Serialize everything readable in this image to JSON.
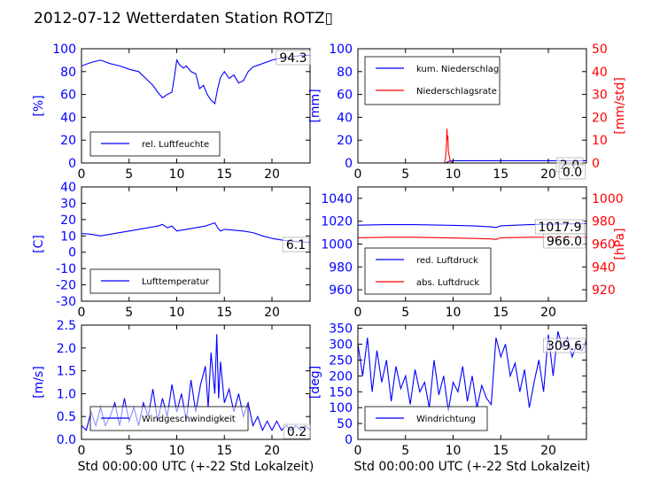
{
  "figure": {
    "title": "2012-07-12 Wetterdaten Station ROTZ▯"
  },
  "colors": {
    "blue": "#0000ff",
    "red": "#ff0000",
    "lightblue": "#8080ff",
    "black": "#000000"
  },
  "chart_data": [
    {
      "id": "humidity",
      "type": "line",
      "xlim": [
        0,
        24
      ],
      "xticks": [
        0,
        5,
        10,
        15,
        20
      ],
      "ylim": [
        0,
        100
      ],
      "yticks": [
        0,
        20,
        40,
        60,
        80,
        100
      ],
      "ylabel": "[%]",
      "current_value": "94.3",
      "legend": {
        "placement": "lower-left",
        "entries": [
          {
            "label": "rel. Luftfeuchte",
            "color": "#0000ff"
          }
        ]
      },
      "series": [
        {
          "name": "rel. Luftfeuchte",
          "color": "#0000ff",
          "x": [
            0,
            1,
            2,
            3,
            4,
            5,
            6,
            7,
            7.5,
            8,
            8.5,
            9,
            9.5,
            9.8,
            10,
            10.3,
            10.7,
            11,
            11.5,
            12,
            12.4,
            12.8,
            13.2,
            13.6,
            14,
            14.3,
            14.6,
            15,
            15.5,
            16,
            16.5,
            17,
            17.5,
            18,
            19,
            20,
            21,
            22,
            23,
            24
          ],
          "y": [
            85,
            88,
            90,
            87,
            85,
            82,
            80,
            72,
            68,
            62,
            57,
            60,
            62,
            78,
            90,
            86,
            83,
            85,
            80,
            78,
            65,
            68,
            60,
            55,
            52,
            65,
            75,
            80,
            74,
            77,
            70,
            72,
            80,
            84,
            87,
            90,
            92,
            93,
            94,
            94.3
          ]
        }
      ]
    },
    {
      "id": "precip",
      "type": "line",
      "xlim": [
        0,
        24
      ],
      "xticks": [
        0,
        5,
        10,
        15,
        20
      ],
      "ylim": [
        0,
        100
      ],
      "yticks": [
        0,
        20,
        40,
        60,
        80,
        100
      ],
      "ylabel": "[mm]",
      "y2lim": [
        0,
        50
      ],
      "y2ticks": [
        0,
        10,
        20,
        30,
        40,
        50
      ],
      "y2label": "[mm/std]",
      "current_values": [
        "2.0",
        "0.0"
      ],
      "legend": {
        "placement": "top-left",
        "entries": [
          {
            "label": "kum. Niederschlag",
            "color": "#0000ff"
          },
          {
            "label": "Niederschlagsrate",
            "color": "#ff0000"
          }
        ]
      },
      "series": [
        {
          "name": "kum. Niederschlag",
          "color": "#0000ff",
          "axis": "left",
          "x": [
            0,
            9.2,
            9.4,
            9.6,
            10,
            24
          ],
          "y": [
            0,
            0,
            0.8,
            1.6,
            2.0,
            2.0
          ]
        },
        {
          "name": "Niederschlagsrate",
          "color": "#ff0000",
          "axis": "right",
          "x": [
            0,
            9.1,
            9.2,
            9.3,
            9.35,
            9.4,
            9.45,
            9.5,
            9.6,
            9.7,
            9.8,
            10,
            24
          ],
          "y": [
            0,
            0,
            2,
            8,
            15,
            10,
            12,
            5,
            3,
            1,
            0.5,
            0,
            0
          ]
        }
      ]
    },
    {
      "id": "temperature",
      "type": "line",
      "xlim": [
        0,
        24
      ],
      "xticks": [
        0,
        5,
        10,
        15,
        20
      ],
      "ylim": [
        -30,
        40
      ],
      "yticks": [
        -30,
        -20,
        -10,
        0,
        10,
        20,
        30,
        40
      ],
      "ylabel": "[C]",
      "current_value": "6.1",
      "legend": {
        "placement": "lower-left",
        "entries": [
          {
            "label": "Lufttemperatur",
            "color": "#0000ff"
          }
        ]
      },
      "series": [
        {
          "name": "Lufttemperatur",
          "color": "#0000ff",
          "x": [
            0,
            1,
            2,
            3,
            4,
            5,
            6,
            7,
            8,
            8.5,
            9,
            9.5,
            10,
            10.5,
            11,
            12,
            13,
            13.5,
            14,
            14.3,
            14.6,
            15,
            16,
            17,
            18,
            19,
            20,
            21,
            22,
            23,
            24
          ],
          "y": [
            11.5,
            11,
            10,
            11,
            12,
            13,
            14,
            15,
            16,
            17,
            15,
            16,
            13,
            13.5,
            14,
            15,
            16,
            17,
            18,
            15,
            13,
            14,
            13.5,
            13,
            12,
            10,
            8.5,
            7.5,
            6.8,
            6.3,
            6.1
          ]
        }
      ]
    },
    {
      "id": "pressure",
      "type": "line",
      "xlim": [
        0,
        24
      ],
      "xticks": [
        0,
        5,
        10,
        15,
        20
      ],
      "ylim": [
        950,
        1050
      ],
      "yticks": [
        960,
        980,
        1000,
        1020,
        1040
      ],
      "y2lim": [
        910,
        1010
      ],
      "y2ticks": [
        920,
        940,
        960,
        980,
        1000
      ],
      "y2label": "[hPa]",
      "current_values": [
        "1017.9",
        "966.0"
      ],
      "legend": {
        "placement": "lower-left",
        "entries": [
          {
            "label": "red. Luftdruck",
            "color": "#0000ff"
          },
          {
            "label": "abs. Luftdruck",
            "color": "#ff0000"
          }
        ]
      },
      "series": [
        {
          "name": "red. Luftdruck",
          "color": "#0000ff",
          "axis": "left",
          "x": [
            0,
            3,
            6,
            9,
            12,
            14,
            14.5,
            15,
            18,
            21,
            24
          ],
          "y": [
            1016.5,
            1017,
            1017,
            1016.5,
            1016,
            1015,
            1014.5,
            1016,
            1017,
            1017.5,
            1017.9
          ]
        },
        {
          "name": "abs. Luftdruck",
          "color": "#ff0000",
          "axis": "right",
          "x": [
            0,
            3,
            6,
            9,
            12,
            14,
            14.5,
            15,
            18,
            21,
            24
          ],
          "y": [
            965.5,
            966,
            966,
            965.5,
            965,
            964.5,
            964,
            965.5,
            966,
            966,
            966
          ]
        }
      ]
    },
    {
      "id": "windspeed",
      "type": "line",
      "xlim": [
        0,
        24
      ],
      "xticks": [
        0,
        5,
        10,
        15,
        20
      ],
      "xlabel": "Std 00:00:00 UTC (+-22 Std Lokalzeit)",
      "ylim": [
        0,
        2.5
      ],
      "yticks": [
        0.0,
        0.5,
        1.0,
        1.5,
        2.0,
        2.5
      ],
      "ylabel": "[m/s]",
      "current_value": "0.2",
      "legend": {
        "placement": "lower-left",
        "entries": [
          {
            "label": "Windgeschwindigkeit",
            "color": "#0000ff"
          }
        ]
      },
      "series": [
        {
          "name": "Windgeschwindigkeit",
          "color": "#0000ff",
          "x": [
            0,
            0.5,
            1,
            1.5,
            2,
            2.5,
            3,
            3.5,
            4,
            4.5,
            5,
            5.5,
            6,
            6.5,
            7,
            7.5,
            8,
            8.5,
            9,
            9.5,
            10,
            10.5,
            11,
            11.5,
            12,
            12.5,
            13,
            13.3,
            13.6,
            14,
            14.2,
            14.4,
            14.6,
            15,
            15.5,
            16,
            16.5,
            17,
            17.5,
            18,
            18.5,
            19,
            19.5,
            20,
            20.5,
            21,
            21.5,
            22,
            22.5,
            23,
            23.5,
            24
          ],
          "y": [
            0.3,
            0.2,
            0.6,
            0.3,
            0.7,
            0.3,
            0.5,
            0.8,
            0.3,
            0.9,
            0.4,
            0.7,
            0.3,
            0.8,
            0.5,
            1.1,
            0.4,
            0.9,
            0.5,
            1.2,
            0.6,
            1.0,
            0.4,
            1.3,
            0.6,
            1.2,
            1.6,
            0.7,
            1.9,
            1.0,
            2.3,
            0.9,
            1.7,
            0.8,
            1.1,
            0.6,
            1.0,
            0.5,
            0.8,
            0.3,
            0.5,
            0.2,
            0.4,
            0.2,
            0.4,
            0.2,
            0.3,
            0.2,
            0.3,
            0.2,
            0.3,
            0.2
          ]
        }
      ]
    },
    {
      "id": "winddir",
      "type": "line",
      "xlim": [
        0,
        24
      ],
      "xticks": [
        0,
        5,
        10,
        15,
        20
      ],
      "xlabel": "Std 00:00:00 UTC (+-22 Std Lokalzeit)",
      "ylim": [
        0,
        360
      ],
      "yticks": [
        0,
        50,
        100,
        150,
        200,
        250,
        300,
        350
      ],
      "ylabel": "[deg]",
      "current_value": "309.6",
      "legend": {
        "placement": "lower-left",
        "entries": [
          {
            "label": "Windrichtung",
            "color": "#0000ff"
          }
        ]
      },
      "series": [
        {
          "name": "Windrichtung",
          "color": "#0000ff",
          "x": [
            0,
            0.5,
            1,
            1.5,
            2,
            2.5,
            3,
            3.5,
            4,
            4.5,
            5,
            5.5,
            6,
            6.5,
            7,
            7.5,
            8,
            8.5,
            9,
            9.5,
            10,
            10.5,
            11,
            11.5,
            12,
            12.5,
            13,
            13.5,
            14,
            14.5,
            15,
            15.5,
            16,
            16.5,
            17,
            17.5,
            18,
            18.5,
            19,
            19.5,
            20,
            20.5,
            21,
            21.5,
            22,
            22.5,
            23,
            23.5,
            24
          ],
          "y": [
            300,
            200,
            320,
            150,
            280,
            180,
            250,
            120,
            230,
            160,
            200,
            110,
            220,
            150,
            180,
            100,
            250,
            140,
            200,
            90,
            180,
            150,
            230,
            120,
            200,
            100,
            170,
            130,
            110,
            320,
            260,
            300,
            200,
            240,
            150,
            220,
            100,
            180,
            250,
            150,
            330,
            200,
            340,
            290,
            320,
            260,
            300,
            280,
            309.6
          ]
        }
      ]
    }
  ]
}
